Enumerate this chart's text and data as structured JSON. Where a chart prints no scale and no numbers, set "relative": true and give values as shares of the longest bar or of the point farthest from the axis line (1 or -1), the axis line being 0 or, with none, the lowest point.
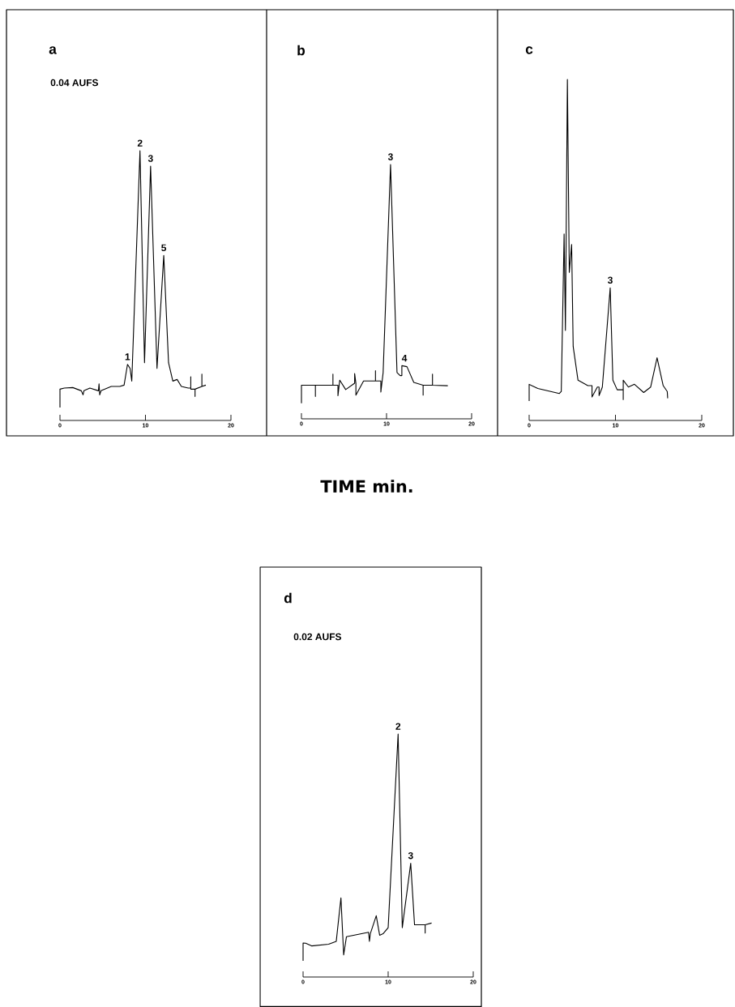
{
  "chart_data": [
    {
      "type": "line",
      "title": "a",
      "relative": true,
      "xlim": [
        0,
        20
      ],
      "xticks": [
        0,
        10,
        20
      ],
      "series": [
        {
          "color": "#000000",
          "x": [
            0,
            0,
            0.5,
            1.5,
            2.5,
            2.7,
            2.8,
            3.5,
            4.5,
            4.57,
            4.65,
            4.8,
            6,
            7,
            7.5,
            7.9,
            8.2,
            8.4,
            9.36,
            9.89,
            10.6,
            11.35,
            12.14,
            12.7,
            13.2,
            13.7,
            14.2,
            15,
            15.3,
            15.3,
            15.3,
            15.8,
            15.8,
            15.8,
            16.6,
            16.6,
            16.6,
            17.06
          ],
          "values": [
            0.048,
            0.116,
            0.12,
            0.122,
            0.11,
            0.095,
            0.11,
            0.12,
            0.11,
            0.136,
            0.095,
            0.11,
            0.126,
            0.126,
            0.131,
            0.208,
            0.193,
            0.146,
            1,
            0.214,
            0.943,
            0.193,
            0.612,
            0.214,
            0.146,
            0.152,
            0.126,
            0.12,
            0.12,
            0.162,
            0.116,
            0.116,
            0.089,
            0.116,
            0.126,
            0.172,
            0.126,
            0.131
          ]
        }
      ],
      "annotations": [
        "0.04 AUFS",
        {
          "text": "1",
          "x": 7.9,
          "y": 0.208
        },
        {
          "text": "2",
          "x": 9.36,
          "y": 1
        },
        {
          "text": "3",
          "x": 10.6,
          "y": 0.943
        },
        {
          "text": "5",
          "x": 12.14,
          "y": 0.612
        }
      ]
    },
    {
      "type": "line",
      "title": "b",
      "xlabel": "TIME  min.",
      "relative": true,
      "xlim": [
        0,
        20
      ],
      "xticks": [
        0,
        10,
        20
      ],
      "series": [
        {
          "color": "#000000",
          "x": [
            0,
            0,
            1.64,
            1.64,
            1.64,
            3.7,
            3.7,
            3.7,
            4.29,
            4.29,
            4.5,
            5.2,
            6.25,
            6.25,
            6.4,
            6.4,
            7.3,
            8.7,
            8.7,
            8.7,
            9.33,
            9.33,
            9.6,
            10.47,
            11.23,
            11.6,
            11.8,
            11.8,
            12.4,
            13.2,
            14.3,
            14.3,
            14.3,
            15.4,
            15.4,
            15.4,
            17.2
          ],
          "values": [
            0.061,
            0.132,
            0.132,
            0.088,
            0.132,
            0.132,
            0.176,
            0.132,
            0.132,
            0.091,
            0.152,
            0.115,
            0.14,
            0.178,
            0.14,
            0.093,
            0.149,
            0.149,
            0.189,
            0.149,
            0.149,
            0.105,
            0.182,
            1,
            0.182,
            0.17,
            0.17,
            0.209,
            0.205,
            0.143,
            0.132,
            0.093,
            0.132,
            0.132,
            0.176,
            0.132,
            0.13
          ]
        }
      ],
      "annotations": [
        {
          "text": "3",
          "x": 10.47,
          "y": 1
        },
        {
          "text": "4",
          "x": 12.1,
          "y": 0.209
        }
      ]
    },
    {
      "type": "line",
      "title": "c",
      "relative": true,
      "xlim": [
        0,
        20
      ],
      "xticks": [
        0,
        10,
        20
      ],
      "series": [
        {
          "color": "#000000",
          "x": [
            0,
            0,
            0.3,
            1,
            3.5,
            3.72,
            4.05,
            4.2,
            4.43,
            4.65,
            4.92,
            5.1,
            5.66,
            6.8,
            7.28,
            7.28,
            7.9,
            8.1,
            8.1,
            8.48,
            9.39,
            9.7,
            10.2,
            10.9,
            10.9,
            10.9,
            11.5,
            12.2,
            13.27,
            14.08,
            14.82,
            15.53,
            16.0,
            16.05
          ],
          "values": [
            0.057,
            0.106,
            0.102,
            0.094,
            0.079,
            0.085,
            0.547,
            0.264,
            1,
            0.434,
            0.516,
            0.217,
            0.118,
            0.102,
            0.102,
            0.069,
            0.098,
            0.098,
            0.073,
            0.098,
            0.389,
            0.118,
            0.09,
            0.09,
            0.061,
            0.118,
            0.098,
            0.106,
            0.082,
            0.098,
            0.184,
            0.102,
            0.085,
            0.065
          ]
        }
      ],
      "annotations": [
        {
          "text": "3",
          "x": 9.39,
          "y": 0.389
        }
      ]
    },
    {
      "type": "line",
      "title": "d",
      "relative": true,
      "xlim": [
        0,
        20
      ],
      "xticks": [
        0,
        10,
        20
      ],
      "series": [
        {
          "color": "#000000",
          "x": [
            0,
            0,
            0.3,
            1,
            3,
            3.9,
            4.45,
            4.77,
            5.1,
            7.7,
            7.8,
            7.9,
            8.6,
            9.0,
            9.4,
            10.0,
            11.17,
            11.66,
            12.65,
            13.1,
            14.0,
            14.35,
            14.35,
            14.35,
            15.1
          ],
          "values": [
            0.067,
            0.14,
            0.139,
            0.128,
            0.135,
            0.147,
            0.326,
            0.091,
            0.166,
            0.184,
            0.147,
            0.178,
            0.252,
            0.172,
            0.178,
            0.203,
            1,
            0.203,
            0.468,
            0.215,
            0.215,
            0.215,
            0.181,
            0.215,
            0.222
          ]
        }
      ],
      "annotations": [
        "0.02 AUFS",
        {
          "text": "2",
          "x": 11.17,
          "y": 1
        },
        {
          "text": "3",
          "x": 12.65,
          "y": 0.468
        }
      ]
    }
  ]
}
